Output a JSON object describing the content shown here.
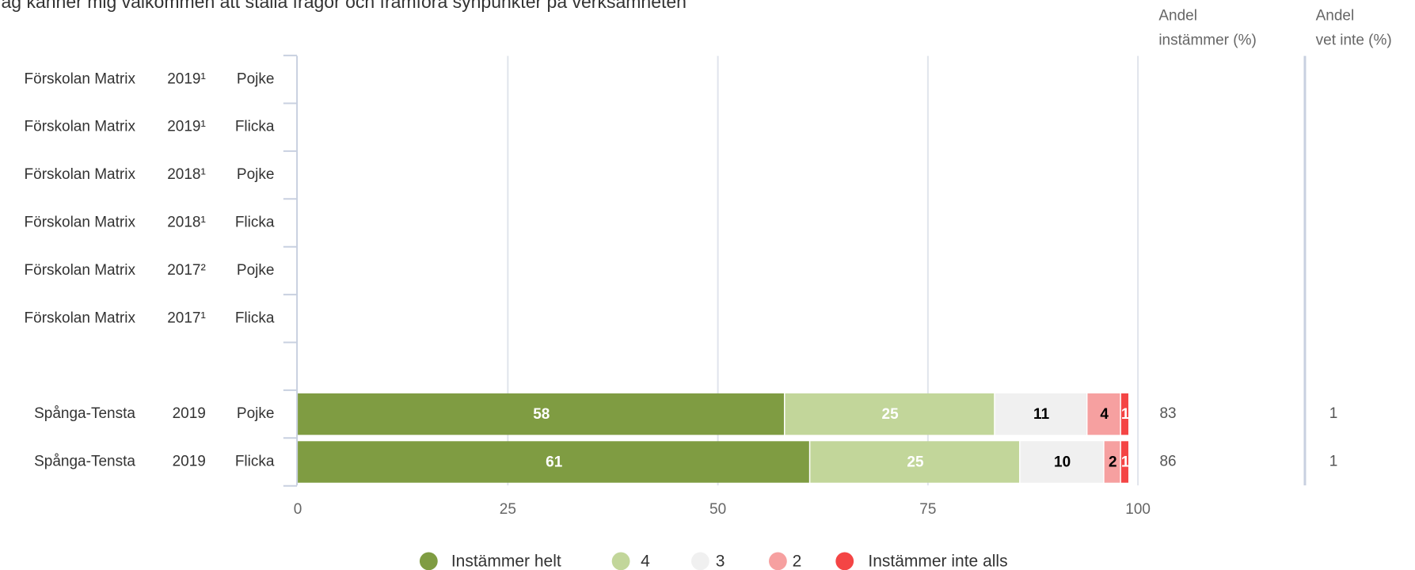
{
  "chart_data": {
    "type": "stacked-bar-horizontal",
    "title": "Jag känner mig välkommen att ställa frågor och framföra synpunkter på verksamheten",
    "categories": [
      "Förskolan Matrix",
      "Förskolan Matrix",
      "Förskolan Matrix",
      "Förskolan Matrix",
      "Förskolan Matrix",
      "Förskolan Matrix",
      null,
      "Spånga-Tensta",
      "Spånga-Tensta"
    ],
    "years": [
      "2019¹",
      "2019¹",
      "2018¹",
      "2018¹",
      "2017²",
      "2017¹",
      null,
      "2019",
      "2019"
    ],
    "genders": [
      "Pojke",
      "Flicka",
      "Pojke",
      "Flicka",
      "Pojke",
      "Flicka",
      null,
      "Pojke",
      "Flicka"
    ],
    "series": [
      {
        "name": "Instämmer helt",
        "color": "#7f9c42",
        "values": [
          null,
          null,
          null,
          null,
          null,
          null,
          null,
          58,
          61
        ]
      },
      {
        "name": "4",
        "color": "#c2d69a",
        "values": [
          null,
          null,
          null,
          null,
          null,
          null,
          null,
          25,
          25
        ]
      },
      {
        "name": "3",
        "color": "#f0f0f0",
        "values": [
          null,
          null,
          null,
          null,
          null,
          null,
          null,
          11,
          10
        ]
      },
      {
        "name": "2",
        "color": "#f6a0a0",
        "values": [
          null,
          null,
          null,
          null,
          null,
          null,
          null,
          4,
          2
        ]
      },
      {
        "name": "Instämmer inte alls",
        "color": "#f44545",
        "values": [
          null,
          null,
          null,
          null,
          null,
          null,
          null,
          1,
          1
        ]
      }
    ],
    "columns": [
      {
        "header": [
          "Andel",
          "instämmer (%)"
        ],
        "values": [
          null,
          null,
          null,
          null,
          null,
          null,
          null,
          83,
          86
        ]
      },
      {
        "header": [
          "Andel",
          "vet inte (%)"
        ],
        "values": [
          null,
          null,
          null,
          null,
          null,
          null,
          null,
          1,
          1
        ]
      }
    ],
    "xlim": [
      0,
      100
    ],
    "xticks": [
      0,
      25,
      50,
      75,
      100
    ],
    "grid": true
  }
}
